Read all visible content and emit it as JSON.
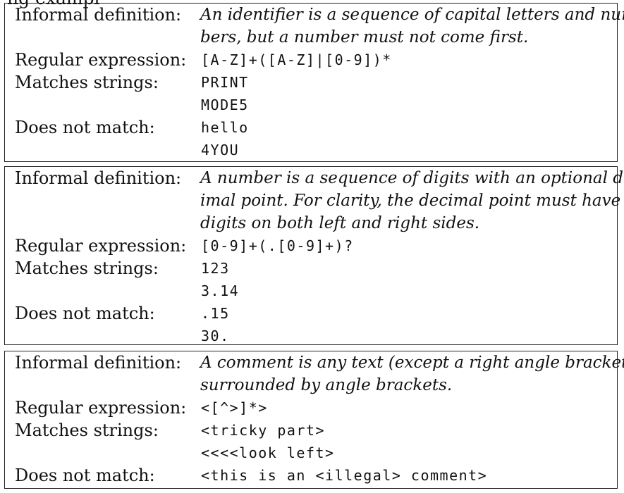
{
  "header_fragment": "ng exampl",
  "boxes": [
    {
      "informal_label": "Informal definition:",
      "definition_lines": [
        "An identifier is a sequence of capital letters and num-",
        "bers, but a number must not come first."
      ],
      "regex_label": "Regular expression:",
      "regex": "[A-Z]+([A-Z]|[0-9])*",
      "matches_label": "Matches strings:",
      "matches": [
        "PRINT",
        "MODE5"
      ],
      "nonmatch_label": "Does not match:",
      "nonmatches": [
        "hello",
        "4YOU"
      ]
    },
    {
      "informal_label": "Informal definition:",
      "definition_lines": [
        "A number is a sequence of digits with an optional dec-",
        "imal point.  For clarity, the decimal point must have",
        "digits on both left and right sides."
      ],
      "regex_label": "Regular expression:",
      "regex": "[0-9]+(.[0-9]+)?",
      "matches_label": "Matches strings:",
      "matches": [
        "123",
        "3.14"
      ],
      "nonmatch_label": "Does not match:",
      "nonmatches": [
        ".15",
        "30."
      ]
    },
    {
      "informal_label": "Informal definition:",
      "definition_lines": [
        "A comment is any text (except a right angle bracket)",
        "surrounded by angle brackets."
      ],
      "regex_label": "Regular expression:",
      "regex": "<[^>]*>",
      "matches_label": "Matches strings:",
      "matches": [
        "<tricky part>",
        "<<<<look left>"
      ],
      "nonmatch_label": "Does not match:",
      "nonmatches": [
        "<this is an <illegal> comment>"
      ]
    }
  ]
}
